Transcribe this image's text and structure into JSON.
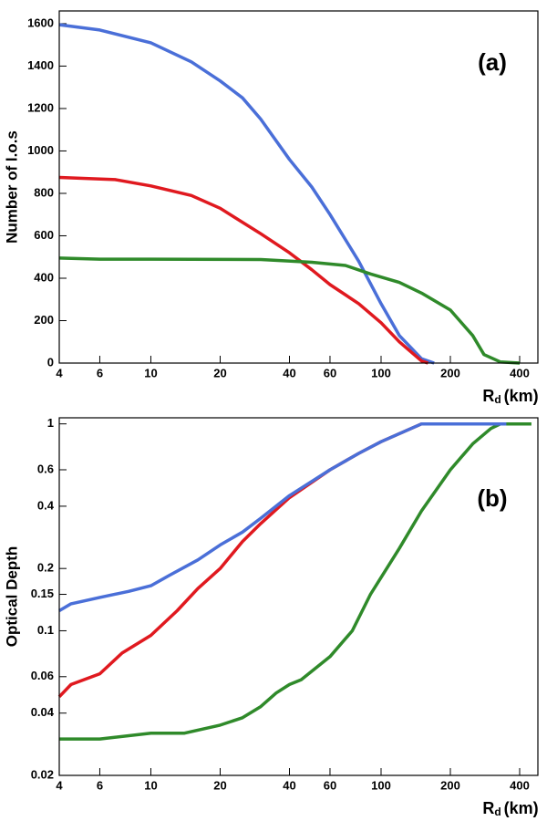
{
  "chart_data": [
    {
      "type": "line",
      "annotation": "(a)",
      "ylabel": "Number of l.o.s",
      "xlabel": {
        "main": "R",
        "sub": "d",
        "unit": "(km)"
      },
      "xscale": "log",
      "xlim": [
        4,
        480
      ],
      "xticks": [
        4,
        6,
        10,
        20,
        40,
        60,
        100,
        200,
        400
      ],
      "ylim": [
        0,
        1660
      ],
      "yticks": [
        0,
        200,
        400,
        600,
        800,
        1000,
        1200,
        1400,
        1600
      ],
      "series": [
        {
          "color": "#4a6fd8",
          "x": [
            4,
            6,
            10,
            15,
            20,
            25,
            30,
            40,
            50,
            60,
            80,
            100,
            120,
            150,
            170
          ],
          "values": [
            1595,
            1570,
            1510,
            1420,
            1330,
            1250,
            1150,
            960,
            830,
            700,
            480,
            280,
            130,
            20,
            0
          ]
        },
        {
          "color": "#e0191f",
          "x": [
            4,
            7,
            10,
            15,
            20,
            30,
            40,
            50,
            60,
            80,
            100,
            120,
            150,
            160
          ],
          "values": [
            875,
            865,
            835,
            790,
            730,
            610,
            520,
            440,
            370,
            280,
            190,
            100,
            10,
            0
          ]
        },
        {
          "color": "#2f8a2a",
          "x": [
            4,
            6,
            10,
            30,
            50,
            70,
            90,
            120,
            150,
            200,
            250,
            280,
            330,
            400
          ],
          "values": [
            495,
            490,
            490,
            488,
            475,
            460,
            420,
            380,
            330,
            250,
            130,
            40,
            5,
            0
          ]
        }
      ]
    },
    {
      "type": "line",
      "annotation": "(b)",
      "ylabel": "Optical Depth",
      "xlabel": {
        "main": "R",
        "sub": "d",
        "unit": "(km)"
      },
      "xscale": "log",
      "yscale": "log",
      "xlim": [
        4,
        480
      ],
      "xticks": [
        4,
        6,
        10,
        20,
        40,
        60,
        100,
        200,
        400
      ],
      "ylim": [
        0.02,
        1.07
      ],
      "yticks": [
        0.02,
        0.04,
        0.06,
        0.1,
        0.15,
        0.2,
        0.4,
        0.6,
        1
      ],
      "series": [
        {
          "color": "#e0191f",
          "x": [
            4,
            4.5,
            6,
            7.5,
            10,
            13,
            16,
            20,
            25,
            30,
            40,
            60,
            80,
            100,
            150,
            160
          ],
          "values": [
            0.048,
            0.055,
            0.062,
            0.078,
            0.095,
            0.125,
            0.16,
            0.2,
            0.27,
            0.33,
            0.44,
            0.6,
            0.72,
            0.82,
            1.0,
            1.0
          ]
        },
        {
          "color": "#2f8a2a",
          "x": [
            4,
            6,
            10,
            14,
            20,
            25,
            30,
            35,
            40,
            45,
            60,
            75,
            90,
            120,
            150,
            200,
            250,
            300,
            330,
            450
          ],
          "values": [
            0.03,
            0.03,
            0.032,
            0.032,
            0.035,
            0.038,
            0.043,
            0.05,
            0.055,
            0.058,
            0.075,
            0.1,
            0.15,
            0.25,
            0.38,
            0.6,
            0.8,
            0.95,
            1.0,
            1.0
          ]
        },
        {
          "color": "#4a6fd8",
          "x": [
            4,
            4.5,
            6,
            8,
            10,
            12,
            16,
            20,
            25,
            30,
            40,
            60,
            80,
            100,
            150,
            350
          ],
          "values": [
            0.125,
            0.135,
            0.145,
            0.155,
            0.165,
            0.185,
            0.22,
            0.26,
            0.3,
            0.35,
            0.45,
            0.6,
            0.72,
            0.82,
            1.0,
            1.0
          ]
        }
      ]
    }
  ]
}
